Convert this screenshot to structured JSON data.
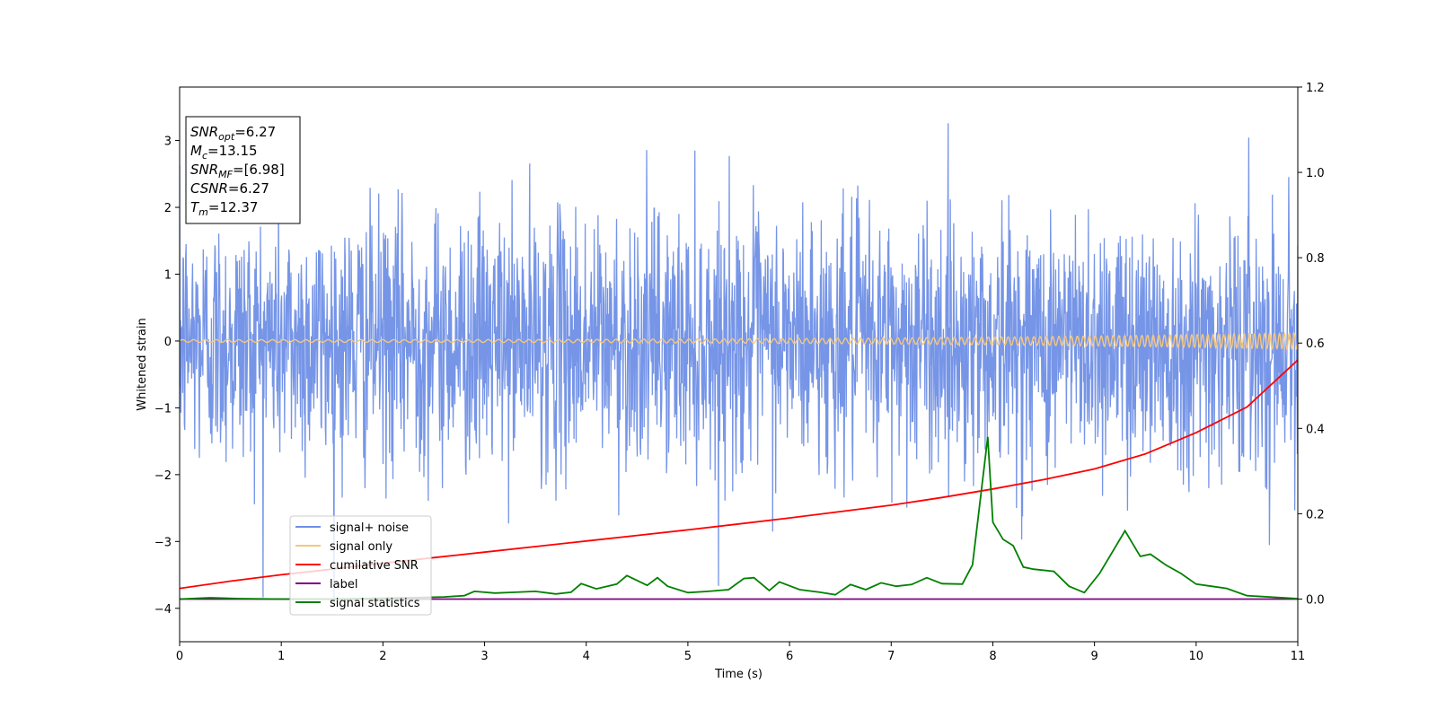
{
  "chart_data": {
    "type": "line",
    "xlabel": "Time (s)",
    "ylabel": "Whitened strain",
    "xlim": [
      0,
      11
    ],
    "ylim_left": [
      -4.5,
      3.8
    ],
    "ylim_right": [
      -0.1,
      1.2
    ],
    "x_ticks": [
      0,
      1,
      2,
      3,
      4,
      5,
      6,
      7,
      8,
      9,
      10,
      11
    ],
    "y_ticks_left": [
      -4,
      -3,
      -2,
      -1,
      0,
      1,
      2,
      3
    ],
    "y_ticks_right": [
      "0.0",
      "0.2",
      "0.4",
      "0.6",
      "0.8",
      "1.0",
      "1.2"
    ],
    "grid": false,
    "legend_position": "lower-left",
    "info_box": [
      {
        "base": "SNR",
        "sub": "opt",
        "value": "=6.27"
      },
      {
        "base": "M",
        "sub": "c",
        "value": "=13.15"
      },
      {
        "base": "SNR",
        "sub": "MF",
        "value": "=[6.98]"
      },
      {
        "base": "CSNR",
        "sub": "",
        "value": "=6.27"
      },
      {
        "base": "T",
        "sub": "m",
        "value": "=12.37"
      }
    ],
    "series": [
      {
        "name": "signal+ noise",
        "color": "#6f8fe6",
        "axis": "left",
        "kind": "noise",
        "sigma": 0.95,
        "spike_max": 3.45,
        "spike_min": -4.15
      },
      {
        "name": "signal only",
        "color": "#f5c77e",
        "axis": "left",
        "kind": "chirp",
        "amplitude_start": 0.02,
        "amplitude_end": 0.12
      },
      {
        "name": "cumilative SNR",
        "color": "#ff0000",
        "axis": "right",
        "x": [
          0,
          0.5,
          1,
          1.5,
          2,
          2.5,
          3,
          3.5,
          4,
          4.5,
          5,
          5.5,
          6,
          6.5,
          7,
          7.5,
          8,
          8.5,
          9,
          9.5,
          10,
          10.5,
          11
        ],
        "y": [
          0.025,
          0.042,
          0.057,
          0.07,
          0.084,
          0.097,
          0.11,
          0.123,
          0.136,
          0.149,
          0.162,
          0.176,
          0.19,
          0.205,
          0.22,
          0.238,
          0.258,
          0.28,
          0.305,
          0.34,
          0.39,
          0.45,
          0.56
        ]
      },
      {
        "name": "label",
        "color": "#800080",
        "axis": "right",
        "x": [
          0,
          11
        ],
        "y": [
          0.0,
          0.0
        ]
      },
      {
        "name": "signal statistics",
        "color": "#008000",
        "axis": "right",
        "x": [
          0,
          0.3,
          0.6,
          1.0,
          1.5,
          2.0,
          2.4,
          2.6,
          2.8,
          2.9,
          3.1,
          3.3,
          3.5,
          3.7,
          3.85,
          3.95,
          4.1,
          4.3,
          4.4,
          4.6,
          4.7,
          4.8,
          5.0,
          5.2,
          5.4,
          5.55,
          5.65,
          5.8,
          5.9,
          6.1,
          6.3,
          6.45,
          6.6,
          6.75,
          6.9,
          7.05,
          7.2,
          7.35,
          7.5,
          7.7,
          7.8,
          7.85,
          7.95,
          8.0,
          8.1,
          8.2,
          8.3,
          8.4,
          8.6,
          8.75,
          8.9,
          9.05,
          9.2,
          9.3,
          9.45,
          9.55,
          9.7,
          9.85,
          10.0,
          10.15,
          10.3,
          10.5,
          11.0
        ],
        "y": [
          0.0,
          0.003,
          0.001,
          0.0,
          0.0,
          0.002,
          0.004,
          0.005,
          0.008,
          0.018,
          0.014,
          0.016,
          0.018,
          0.012,
          0.016,
          0.036,
          0.024,
          0.035,
          0.055,
          0.032,
          0.05,
          0.03,
          0.015,
          0.018,
          0.022,
          0.048,
          0.05,
          0.02,
          0.04,
          0.022,
          0.016,
          0.01,
          0.034,
          0.022,
          0.038,
          0.03,
          0.034,
          0.05,
          0.036,
          0.035,
          0.08,
          0.18,
          0.38,
          0.18,
          0.14,
          0.125,
          0.075,
          0.07,
          0.065,
          0.03,
          0.015,
          0.06,
          0.12,
          0.16,
          0.1,
          0.105,
          0.08,
          0.06,
          0.035,
          0.03,
          0.025,
          0.008,
          0.001
        ]
      }
    ]
  }
}
